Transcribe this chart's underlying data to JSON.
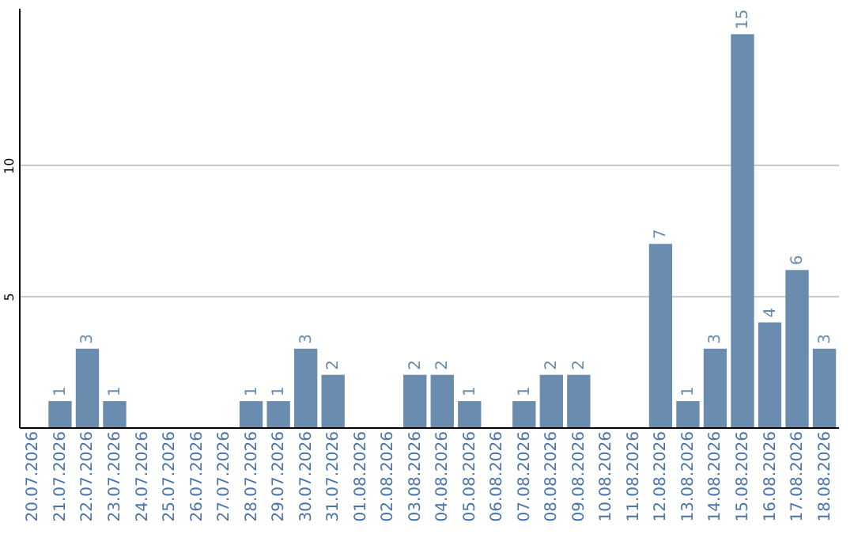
{
  "chart_data": {
    "type": "bar",
    "categories": [
      "20.07.2026",
      "21.07.2026",
      "22.07.2026",
      "23.07.2026",
      "24.07.2026",
      "25.07.2026",
      "26.07.2026",
      "27.07.2026",
      "28.07.2026",
      "29.07.2026",
      "30.07.2026",
      "31.07.2026",
      "01.08.2026",
      "02.08.2026",
      "03.08.2026",
      "04.08.2026",
      "05.08.2026",
      "06.08.2026",
      "07.08.2026",
      "08.08.2026",
      "09.08.2026",
      "10.08.2026",
      "11.08.2026",
      "12.08.2026",
      "13.08.2026",
      "14.08.2026",
      "15.08.2026",
      "16.08.2026",
      "17.08.2026",
      "18.08.2026"
    ],
    "values": [
      0,
      1,
      3,
      1,
      0,
      0,
      0,
      0,
      1,
      1,
      3,
      2,
      0,
      0,
      2,
      2,
      1,
      0,
      1,
      2,
      2,
      0,
      0,
      7,
      1,
      3,
      15,
      4,
      6,
      3
    ],
    "value_labels": [
      null,
      "1",
      "3",
      "1",
      null,
      null,
      null,
      null,
      "1",
      "1",
      "3",
      "2",
      null,
      null,
      "2",
      "2",
      "1",
      null,
      "1",
      "2",
      "2",
      null,
      null,
      "7",
      "1",
      "3",
      "15",
      "4",
      "6",
      "3"
    ],
    "color": "#6a8caf",
    "ylim": [
      0,
      16
    ],
    "yticks": [
      5,
      10
    ],
    "grid": "y"
  }
}
